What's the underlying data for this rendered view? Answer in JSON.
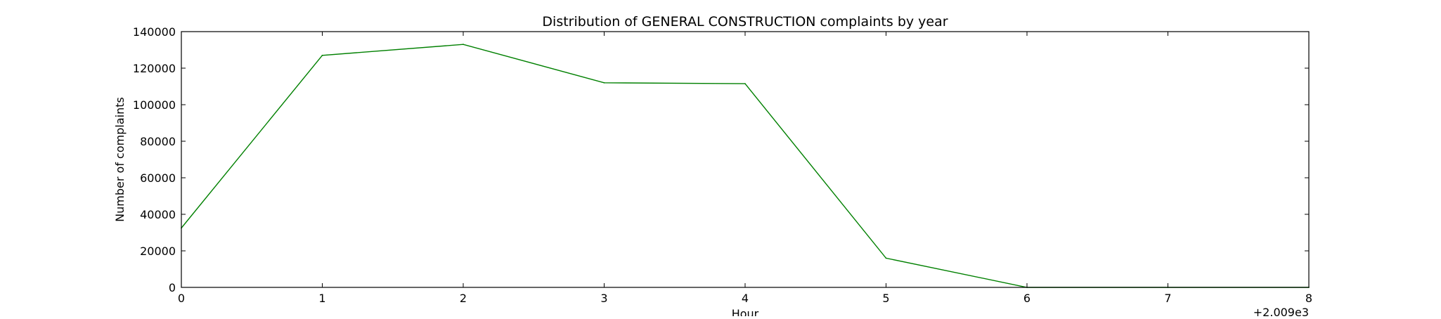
{
  "chart_data": {
    "type": "line",
    "title": "Distribution of  GENERAL CONSTRUCTION complaints by year",
    "xlabel": "Hour",
    "ylabel": "Number of complaints",
    "x_offset_label": "+2.009e3",
    "xlim": [
      0,
      8
    ],
    "ylim": [
      0,
      140000
    ],
    "x_ticks": [
      "0",
      "1",
      "2",
      "3",
      "4",
      "5",
      "6",
      "7",
      "8"
    ],
    "y_ticks": [
      "0",
      "20000",
      "40000",
      "60000",
      "80000",
      "100000",
      "120000",
      "140000"
    ],
    "grid": false,
    "series": [
      {
        "color": "#008000",
        "x": [
          0,
          1,
          2,
          3,
          4,
          5,
          6,
          7,
          8
        ],
        "y": [
          32500,
          127000,
          133000,
          112000,
          111500,
          16000,
          0,
          0,
          0
        ]
      }
    ]
  }
}
